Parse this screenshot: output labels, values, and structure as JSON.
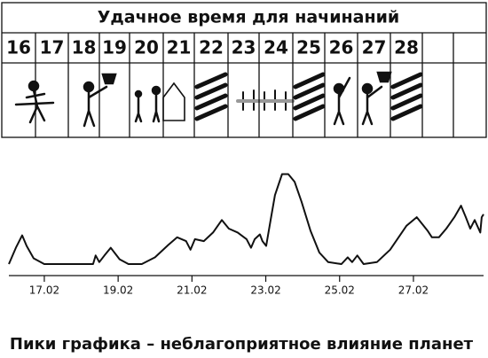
{
  "calendar": {
    "title": "Удачное время для начинаний",
    "days": [
      "16",
      "17",
      "18",
      "19",
      "20",
      "21",
      "22",
      "23",
      "24",
      "25",
      "26",
      "27",
      "28"
    ]
  },
  "chart_data": {
    "type": "line",
    "title": "Пики графика – неблагоприятное влияние планет",
    "color": "#111111",
    "x": [
      16.04,
      16.23,
      16.4,
      16.52,
      16.71,
      17.0,
      17.72,
      18.32,
      18.39,
      18.49,
      18.63,
      18.8,
      18.92,
      19.04,
      19.28,
      19.64,
      20.0,
      20.36,
      20.6,
      20.84,
      20.96,
      21.08,
      21.32,
      21.57,
      21.81,
      22.0,
      22.24,
      22.48,
      22.6,
      22.7,
      22.84,
      22.91,
      23.01,
      23.13,
      23.25,
      23.44,
      23.61,
      23.78,
      23.97,
      24.21,
      24.45,
      24.69,
      25.05,
      25.22,
      25.34,
      25.48,
      25.65,
      26.01,
      26.37,
      26.81,
      27.09,
      27.38,
      27.5,
      27.69,
      27.89,
      28.11,
      28.29,
      28.42,
      28.54,
      28.66,
      28.81,
      28.85,
      28.9
    ],
    "values": [
      0,
      17,
      30,
      19,
      6,
      0,
      0,
      0,
      9,
      2,
      9,
      17,
      11,
      5,
      0,
      0,
      7,
      20,
      28,
      24,
      15,
      26,
      24,
      33,
      46,
      37,
      33,
      26,
      17,
      26,
      31,
      24,
      19,
      46,
      72,
      94,
      94,
      86,
      65,
      35,
      12,
      2,
      0,
      7,
      2,
      9,
      0,
      2,
      15,
      40,
      49,
      35,
      28,
      28,
      37,
      49,
      61,
      49,
      37,
      46,
      33,
      49,
      52
    ],
    "xlim": [
      16.04,
      28.9
    ],
    "ylim": [
      0,
      100
    ],
    "xticks": [
      {
        "value": 17,
        "label": "17.02"
      },
      {
        "value": 19,
        "label": "19.02"
      },
      {
        "value": 21,
        "label": "21.02"
      },
      {
        "value": 23,
        "label": "23.02"
      },
      {
        "value": 25,
        "label": "25.02"
      },
      {
        "value": 27,
        "label": "27.02"
      }
    ]
  }
}
